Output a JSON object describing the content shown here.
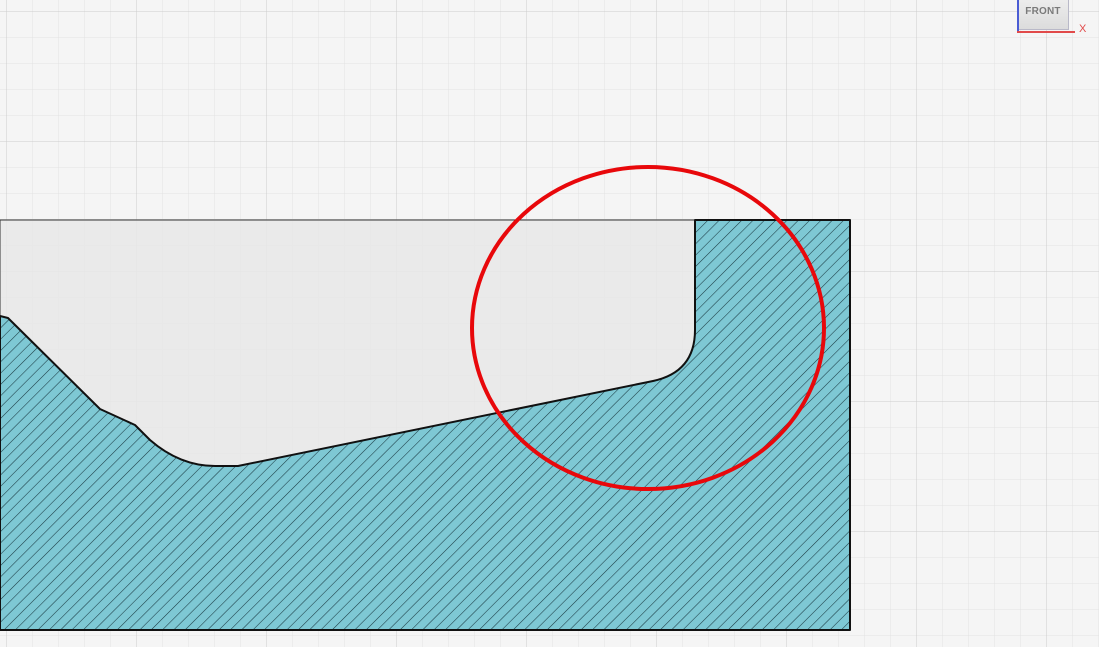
{
  "viewcube": {
    "face_label": "FRONT",
    "x_axis_label": "X"
  },
  "colors": {
    "background": "#f5f5f5",
    "grid_minor": "#e2e2e2",
    "grid_major": "#cdcdcd",
    "section_fill": "#7ec8d4",
    "hatch": "#1c3c44",
    "part_body": "#e8e8e8",
    "outline": "#111111",
    "highlight": "#e8080b",
    "x_axis": "#e14a4a",
    "z_axis": "#4a5cd4"
  }
}
